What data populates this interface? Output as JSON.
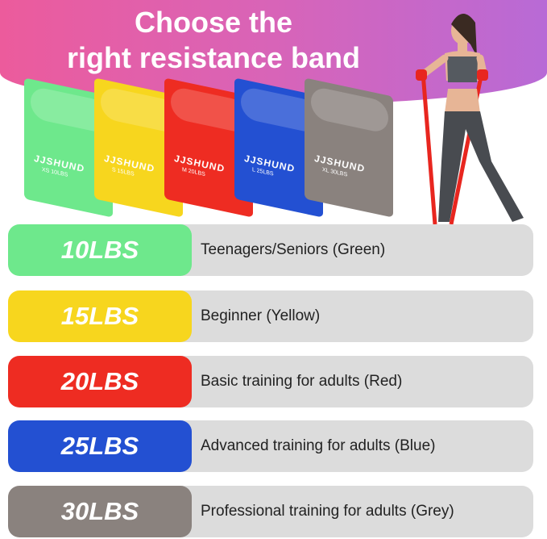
{
  "title_line1": "Choose the",
  "title_line2": "right resistance band",
  "bands": [
    {
      "brand": "JJSHUND",
      "size": "XS 10LBS",
      "color": "#6ee88c"
    },
    {
      "brand": "JJSHUND",
      "size": "S 15LBS",
      "color": "#f7d61e"
    },
    {
      "brand": "JJSHUND",
      "size": "M 20LBS",
      "color": "#ee2c22"
    },
    {
      "brand": "JJSHUND",
      "size": "L 25LBS",
      "color": "#2350d2"
    },
    {
      "brand": "JJSHUND",
      "size": "XL 30LBS",
      "color": "#8a827e"
    }
  ],
  "rows": [
    {
      "weight": "10LBS",
      "description": "Teenagers/Seniors (Green)",
      "color": "#6ee88c"
    },
    {
      "weight": "15LBS",
      "description": "Beginner (Yellow)",
      "color": "#f7d61e"
    },
    {
      "weight": "20LBS",
      "description": "Basic training for adults (Red)",
      "color": "#ee2c22"
    },
    {
      "weight": "25LBS",
      "description": "Advanced training for adults (Blue)",
      "color": "#2350d2"
    },
    {
      "weight": "30LBS",
      "description": "Professional training for adults (Grey)",
      "color": "#8a827e"
    }
  ]
}
